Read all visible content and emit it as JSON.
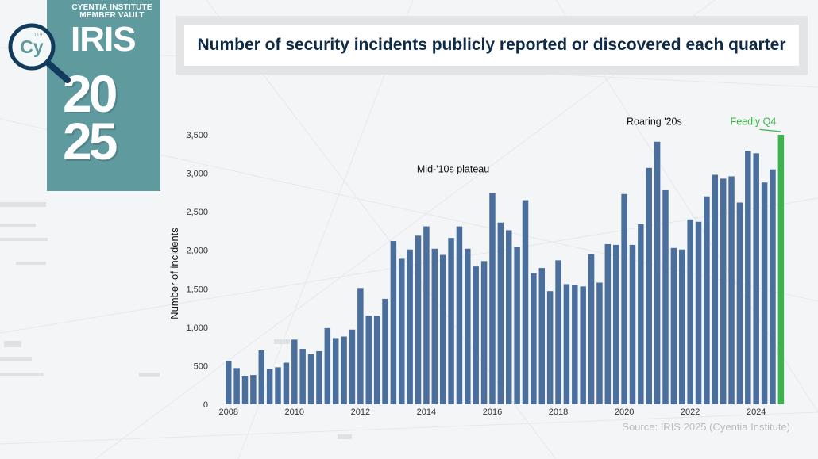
{
  "header": {
    "title": "Number of security incidents publicly reported or discovered each quarter"
  },
  "badge": {
    "line1": "CYENTIA INSTITUTE",
    "line2": "MEMBER VAULT",
    "iris": "IRIS",
    "year_top": "20",
    "year_bottom": "25",
    "logo_text": "Cy",
    "logo_number": "119",
    "colors": {
      "badge_bg": "#5f9a9f",
      "logo_ring": "#123a5c"
    }
  },
  "source": "Source: IRIS 2025 (Cyentia Institute)",
  "chart_data": {
    "type": "bar",
    "ylabel": "Number of incidents",
    "xlabel": "",
    "ylim": [
      0,
      3500
    ],
    "yticks": [
      0,
      500,
      1000,
      1500,
      2000,
      2500,
      3000,
      3500
    ],
    "ytick_labels": [
      "0",
      "500",
      "1,000",
      "1,500",
      "2,000",
      "2,500",
      "3,000",
      "3,500"
    ],
    "xlim": [
      2008,
      2025
    ],
    "xticks": [
      2008,
      2010,
      2012,
      2014,
      2016,
      2018,
      2020,
      2022,
      2024
    ],
    "grid": false,
    "bar_color": "#4a6f9c",
    "highlight_color": "#3bb44a",
    "bars": [
      {
        "x": 2008.0,
        "value": 560
      },
      {
        "x": 2008.25,
        "value": 470
      },
      {
        "x": 2008.5,
        "value": 370
      },
      {
        "x": 2008.75,
        "value": 380
      },
      {
        "x": 2009.0,
        "value": 700
      },
      {
        "x": 2009.25,
        "value": 460
      },
      {
        "x": 2009.5,
        "value": 480
      },
      {
        "x": 2009.75,
        "value": 540
      },
      {
        "x": 2010.0,
        "value": 840
      },
      {
        "x": 2010.25,
        "value": 720
      },
      {
        "x": 2010.5,
        "value": 650
      },
      {
        "x": 2010.75,
        "value": 690
      },
      {
        "x": 2011.0,
        "value": 990
      },
      {
        "x": 2011.25,
        "value": 860
      },
      {
        "x": 2011.5,
        "value": 880
      },
      {
        "x": 2011.75,
        "value": 970
      },
      {
        "x": 2012.0,
        "value": 1510
      },
      {
        "x": 2012.25,
        "value": 1150
      },
      {
        "x": 2012.5,
        "value": 1150
      },
      {
        "x": 2012.75,
        "value": 1370
      },
      {
        "x": 2013.0,
        "value": 2120
      },
      {
        "x": 2013.25,
        "value": 1890
      },
      {
        "x": 2013.5,
        "value": 2010
      },
      {
        "x": 2013.75,
        "value": 2190
      },
      {
        "x": 2014.0,
        "value": 2310
      },
      {
        "x": 2014.25,
        "value": 2020
      },
      {
        "x": 2014.5,
        "value": 1940
      },
      {
        "x": 2014.75,
        "value": 2160
      },
      {
        "x": 2015.0,
        "value": 2310
      },
      {
        "x": 2015.25,
        "value": 2020
      },
      {
        "x": 2015.5,
        "value": 1790
      },
      {
        "x": 2015.75,
        "value": 1860
      },
      {
        "x": 2016.0,
        "value": 2740
      },
      {
        "x": 2016.25,
        "value": 2360
      },
      {
        "x": 2016.5,
        "value": 2260
      },
      {
        "x": 2016.75,
        "value": 2040
      },
      {
        "x": 2017.0,
        "value": 2650
      },
      {
        "x": 2017.25,
        "value": 1700
      },
      {
        "x": 2017.5,
        "value": 1770
      },
      {
        "x": 2017.75,
        "value": 1470
      },
      {
        "x": 2018.0,
        "value": 1870
      },
      {
        "x": 2018.25,
        "value": 1560
      },
      {
        "x": 2018.5,
        "value": 1550
      },
      {
        "x": 2018.75,
        "value": 1530
      },
      {
        "x": 2019.0,
        "value": 1950
      },
      {
        "x": 2019.25,
        "value": 1580
      },
      {
        "x": 2019.5,
        "value": 2080
      },
      {
        "x": 2019.75,
        "value": 2070
      },
      {
        "x": 2020.0,
        "value": 2730
      },
      {
        "x": 2020.25,
        "value": 2070
      },
      {
        "x": 2020.5,
        "value": 2340
      },
      {
        "x": 2020.75,
        "value": 3070
      },
      {
        "x": 2021.0,
        "value": 3410
      },
      {
        "x": 2021.25,
        "value": 2780
      },
      {
        "x": 2021.5,
        "value": 2030
      },
      {
        "x": 2021.75,
        "value": 2010
      },
      {
        "x": 2022.0,
        "value": 2400
      },
      {
        "x": 2022.25,
        "value": 2370
      },
      {
        "x": 2022.5,
        "value": 2700
      },
      {
        "x": 2022.75,
        "value": 2980
      },
      {
        "x": 2023.0,
        "value": 2930
      },
      {
        "x": 2023.25,
        "value": 2960
      },
      {
        "x": 2023.5,
        "value": 2620
      },
      {
        "x": 2023.75,
        "value": 3290
      },
      {
        "x": 2024.0,
        "value": 3260
      },
      {
        "x": 2024.25,
        "value": 2880
      },
      {
        "x": 2024.5,
        "value": 3050
      },
      {
        "x": 2024.75,
        "value": 3500,
        "highlight": true
      }
    ],
    "annotations": [
      {
        "text": "Mid-'10s plateau",
        "x": 2014.9,
        "y": 3010,
        "color": "#111111"
      },
      {
        "text": "Roaring '20s",
        "x": 2021.0,
        "y": 3630,
        "color": "#111111"
      },
      {
        "text": "Feedly Q4",
        "x": 2024.0,
        "y": 3630,
        "color": "#3bb44a",
        "leader": true
      }
    ]
  }
}
